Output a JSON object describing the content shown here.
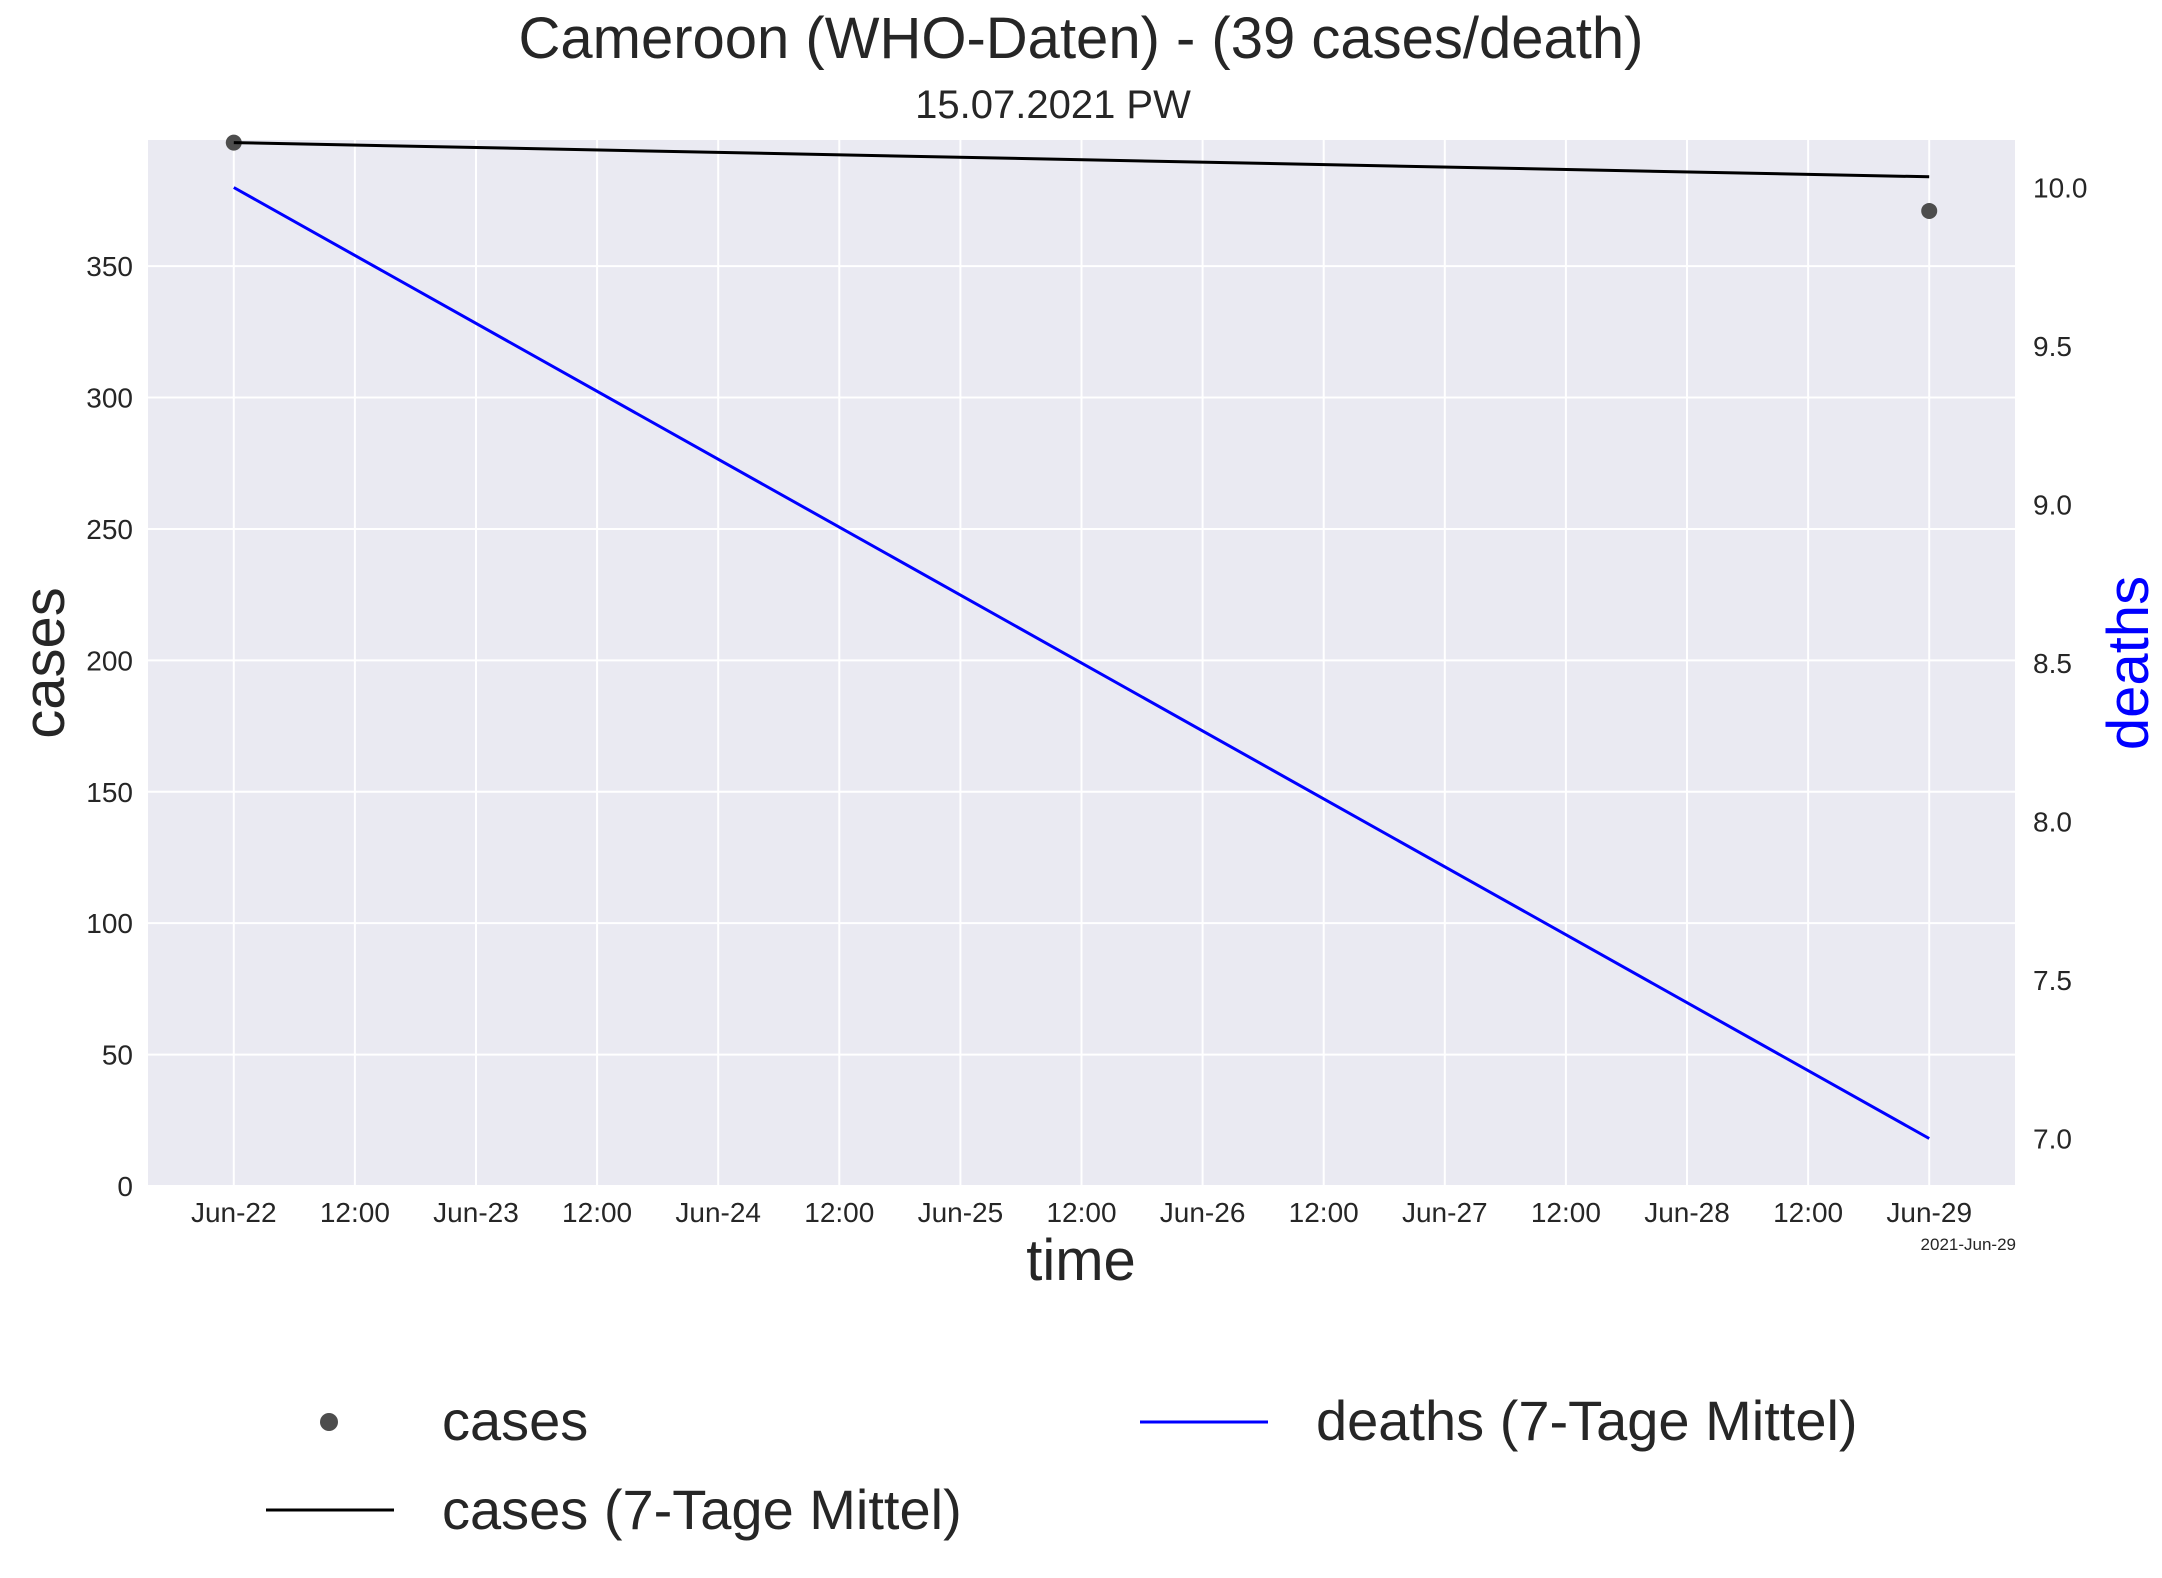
{
  "chart_data": {
    "type": "line",
    "title": "Cameroon (WHO-Daten) - (39 cases/death)",
    "subtitle": "15.07.2021 PW",
    "xlabel": "time",
    "ylabel_left": "cases",
    "ylabel_right": "deaths",
    "x_tick_labels": [
      "Jun-22",
      "12:00",
      "Jun-23",
      "12:00",
      "Jun-24",
      "12:00",
      "Jun-25",
      "12:00",
      "Jun-26",
      "12:00",
      "Jun-27",
      "12:00",
      "Jun-28",
      "12:00",
      "Jun-29"
    ],
    "x_corner_label": "2021-Jun-29",
    "xlim": [
      "2021-06-21T15:30",
      "2021-06-29T08:30"
    ],
    "ylim_left": [
      0,
      398
    ],
    "ylim_right": [
      6.85,
      10.15
    ],
    "y_left_ticks": [
      0,
      50,
      100,
      150,
      200,
      250,
      300,
      350
    ],
    "y_right_ticks": [
      7.0,
      7.5,
      8.0,
      8.5,
      9.0,
      9.5,
      10.0
    ],
    "grid": true,
    "legend_position": "bottom",
    "series": [
      {
        "name": "cases",
        "style": "markers",
        "color": "#4d4d4d",
        "axis": "left",
        "x": [
          "2021-06-22",
          "2021-06-29"
        ],
        "y": [
          397,
          371
        ]
      },
      {
        "name": "cases (7-Tage Mittel)",
        "style": "line",
        "color": "#000000",
        "axis": "left",
        "x": [
          "2021-06-22",
          "2021-06-29"
        ],
        "y": [
          397,
          384
        ]
      },
      {
        "name": "deaths (7-Tage Mittel)",
        "style": "line",
        "color": "#0000ff",
        "axis": "right",
        "x": [
          "2021-06-22",
          "2021-06-29"
        ],
        "y": [
          10.0,
          7.0
        ]
      }
    ]
  }
}
